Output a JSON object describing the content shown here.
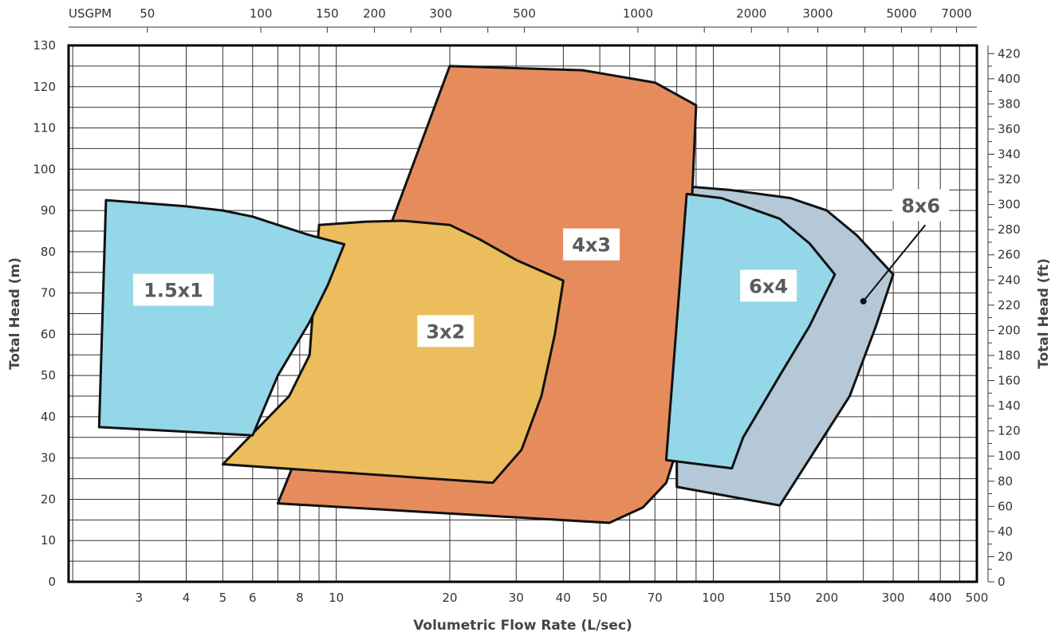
{
  "chart_data": {
    "type": "area",
    "title": "",
    "xlabel": "Volumetric Flow Rate (L/sec)",
    "ylabel": "Total Head (m)",
    "ylabel_right": "Total Head (ft)",
    "x_scale": "log",
    "xlim": [
      1.95,
      500
    ],
    "ylim": [
      0,
      130
    ],
    "x_ticks": [
      3,
      4,
      5,
      6,
      8,
      10,
      20,
      30,
      40,
      50,
      70,
      100,
      150,
      200,
      300,
      400,
      500
    ],
    "y_ticks": [
      0,
      10,
      20,
      30,
      40,
      50,
      60,
      70,
      80,
      90,
      100,
      110,
      120,
      130
    ],
    "top_axis": {
      "unit_label": "USGPM",
      "ticks": [
        50,
        100,
        150,
        200,
        300,
        500,
        1000,
        2000,
        3000,
        5000,
        7000
      ]
    },
    "right_axis_ticks": [
      0,
      20,
      40,
      60,
      80,
      100,
      120,
      140,
      160,
      180,
      200,
      220,
      240,
      260,
      280,
      300,
      320,
      340,
      360,
      380,
      400,
      420
    ],
    "grid": true,
    "colors": {
      "1.5x1": "#94d7e8",
      "3x2": "#ebbd5c",
      "4x3": "#e68c5c",
      "6x4": "#94d7e8",
      "8x6": "#b4c8d7"
    },
    "series": [
      {
        "name": "8x6",
        "points": [
          [
            80,
            96
          ],
          [
            110,
            95
          ],
          [
            160,
            93
          ],
          [
            200,
            90
          ],
          [
            240,
            84
          ],
          [
            300,
            74.5
          ],
          [
            270,
            62
          ],
          [
            230,
            45
          ],
          [
            150,
            18.5
          ],
          [
            80,
            23
          ]
        ]
      },
      {
        "name": "4x3",
        "points": [
          [
            14,
            87
          ],
          [
            20,
            125
          ],
          [
            45,
            124
          ],
          [
            70,
            121
          ],
          [
            90,
            115.5
          ],
          [
            88,
            95
          ],
          [
            85,
            60
          ],
          [
            82,
            35
          ],
          [
            75,
            24
          ],
          [
            65,
            18
          ],
          [
            53,
            14.3
          ],
          [
            7,
            19
          ]
        ]
      },
      {
        "name": "6x4",
        "points": [
          [
            85,
            94
          ],
          [
            105,
            93
          ],
          [
            150,
            88
          ],
          [
            180,
            82
          ],
          [
            210,
            74.5
          ],
          [
            180,
            62
          ],
          [
            150,
            50
          ],
          [
            120,
            35
          ],
          [
            112,
            27.5
          ],
          [
            75,
            29.5
          ]
        ]
      },
      {
        "name": "3x2",
        "points": [
          [
            9,
            86.5
          ],
          [
            12,
            87.3
          ],
          [
            15,
            87.5
          ],
          [
            20,
            86.5
          ],
          [
            24,
            83
          ],
          [
            30,
            78
          ],
          [
            40,
            73
          ],
          [
            38,
            60
          ],
          [
            35,
            45
          ],
          [
            31,
            32
          ],
          [
            26,
            24
          ],
          [
            5,
            28.5
          ],
          [
            7.5,
            45
          ],
          [
            8.5,
            55
          ]
        ]
      },
      {
        "name": "1.5x1",
        "points": [
          [
            2.45,
            92.5
          ],
          [
            4,
            91
          ],
          [
            5,
            90
          ],
          [
            6,
            88.5
          ],
          [
            7,
            86.5
          ],
          [
            8.5,
            84
          ],
          [
            10.5,
            81.8
          ],
          [
            9.5,
            72
          ],
          [
            8.5,
            63
          ],
          [
            7,
            50
          ],
          [
            6,
            35.5
          ],
          [
            2.35,
            37.5
          ]
        ]
      }
    ],
    "labels": [
      {
        "text": "1.5x1",
        "x": 3.7,
        "y": 70
      },
      {
        "text": "3x2",
        "x": 19.5,
        "y": 60
      },
      {
        "text": "4x3",
        "x": 47.5,
        "y": 81
      },
      {
        "text": "6x4",
        "x": 140,
        "y": 71
      },
      {
        "text": "8x6",
        "x": 355,
        "y": 90.5
      }
    ],
    "callout": {
      "region": "8x6",
      "label_x": 365,
      "label_y": 86.5,
      "point_x": 250,
      "point_y": 68
    }
  }
}
